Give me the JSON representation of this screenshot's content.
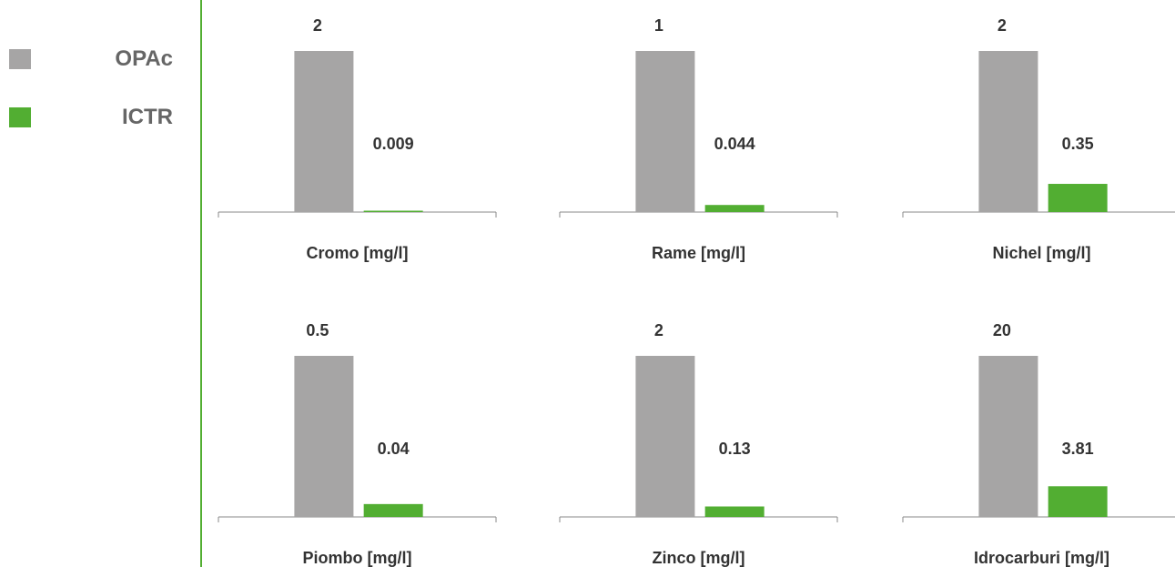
{
  "legend": {
    "items": [
      {
        "label": "OPAc",
        "color": "#a6a5a5"
      },
      {
        "label": "ICTR",
        "color": "#52ae32"
      }
    ]
  },
  "divider_color": "#52ae32",
  "chart_data": [
    {
      "type": "bar",
      "xlabel": "Cromo [mg/l]",
      "categories": [
        "OPAc",
        "ICTR"
      ],
      "values": [
        2,
        0.009
      ],
      "value_labels": [
        "2",
        "0.009"
      ]
    },
    {
      "type": "bar",
      "xlabel": "Rame [mg/l]",
      "categories": [
        "OPAc",
        "ICTR"
      ],
      "values": [
        1,
        0.044
      ],
      "value_labels": [
        "1",
        "0.044"
      ]
    },
    {
      "type": "bar",
      "xlabel": "Nichel [mg/l]",
      "categories": [
        "OPAc",
        "ICTR"
      ],
      "values": [
        2,
        0.35
      ],
      "value_labels": [
        "2",
        "0.35"
      ]
    },
    {
      "type": "bar",
      "xlabel": "Piombo [mg/l]",
      "categories": [
        "OPAc",
        "ICTR"
      ],
      "values": [
        0.5,
        0.04
      ],
      "value_labels": [
        "0.5",
        "0.04"
      ]
    },
    {
      "type": "bar",
      "xlabel": "Zinco [mg/l]",
      "categories": [
        "OPAc",
        "ICTR"
      ],
      "values": [
        2,
        0.13
      ],
      "value_labels": [
        "2",
        "0.13"
      ]
    },
    {
      "type": "bar",
      "xlabel": "Idrocarburi [mg/l]",
      "categories": [
        "OPAc",
        "ICTR"
      ],
      "values": [
        20,
        3.81
      ],
      "value_labels": [
        "20",
        "3.81"
      ]
    }
  ]
}
